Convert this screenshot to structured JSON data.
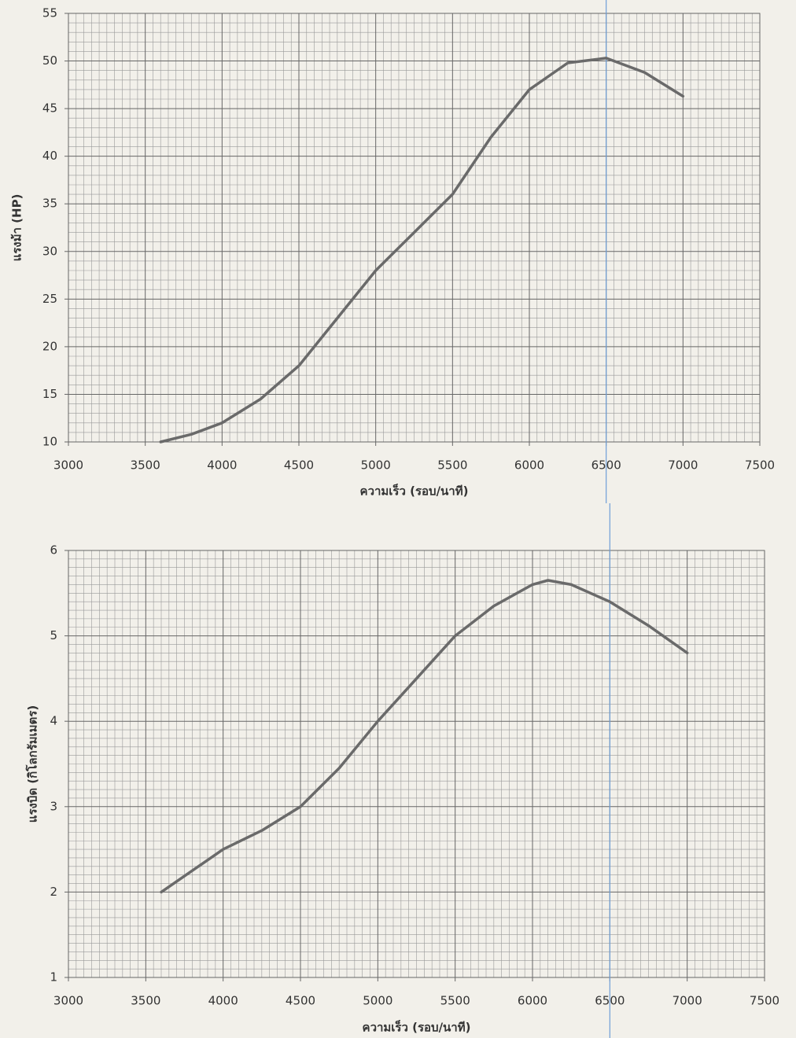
{
  "chart_data": [
    {
      "type": "line",
      "x_label": "ความเร็ว (รอบ/นาที)",
      "y_label": "แรงม้า (HP)",
      "xlim": [
        3000,
        7500
      ],
      "xticks": [
        3000,
        3500,
        4000,
        4500,
        5000,
        5500,
        6000,
        6500,
        7000,
        7500
      ],
      "ylim": [
        10,
        55
      ],
      "yticks": [
        10,
        15,
        20,
        25,
        30,
        35,
        40,
        45,
        50,
        55
      ],
      "grid": true,
      "vline": 6500,
      "vline_color": "#6f9fd8",
      "series": [
        {
          "color": "#6a6a6a",
          "x": [
            3600,
            3800,
            4000,
            4250,
            4500,
            4750,
            5000,
            5250,
            5500,
            5750,
            6000,
            6250,
            6500,
            6750,
            7000
          ],
          "values": [
            10,
            10.8,
            12,
            14.5,
            18,
            23,
            28,
            32,
            36,
            42,
            47,
            49.8,
            50.3,
            48.8,
            46.3
          ]
        }
      ]
    },
    {
      "type": "line",
      "x_label": "ความเร็ว (รอบ/นาที)",
      "y_label": "แรงบิด (กิโลกรัมเมตร)",
      "xlim": [
        3000,
        7500
      ],
      "xticks": [
        3000,
        3500,
        4000,
        4500,
        5000,
        5500,
        6000,
        6500,
        7000,
        7500
      ],
      "ylim": [
        1,
        6
      ],
      "yticks": [
        1,
        2,
        3,
        4,
        5,
        6
      ],
      "grid": true,
      "vline": 6500,
      "vline_color": "#6f9fd8",
      "series": [
        {
          "color": "#6a6a6a",
          "x": [
            3600,
            4000,
            4250,
            4500,
            4750,
            5000,
            5250,
            5500,
            5750,
            6000,
            6100,
            6250,
            6500,
            6750,
            7000
          ],
          "values": [
            2.0,
            2.5,
            2.72,
            3.0,
            3.45,
            4.0,
            4.5,
            5.0,
            5.35,
            5.6,
            5.65,
            5.6,
            5.4,
            5.12,
            4.8
          ]
        }
      ]
    }
  ]
}
